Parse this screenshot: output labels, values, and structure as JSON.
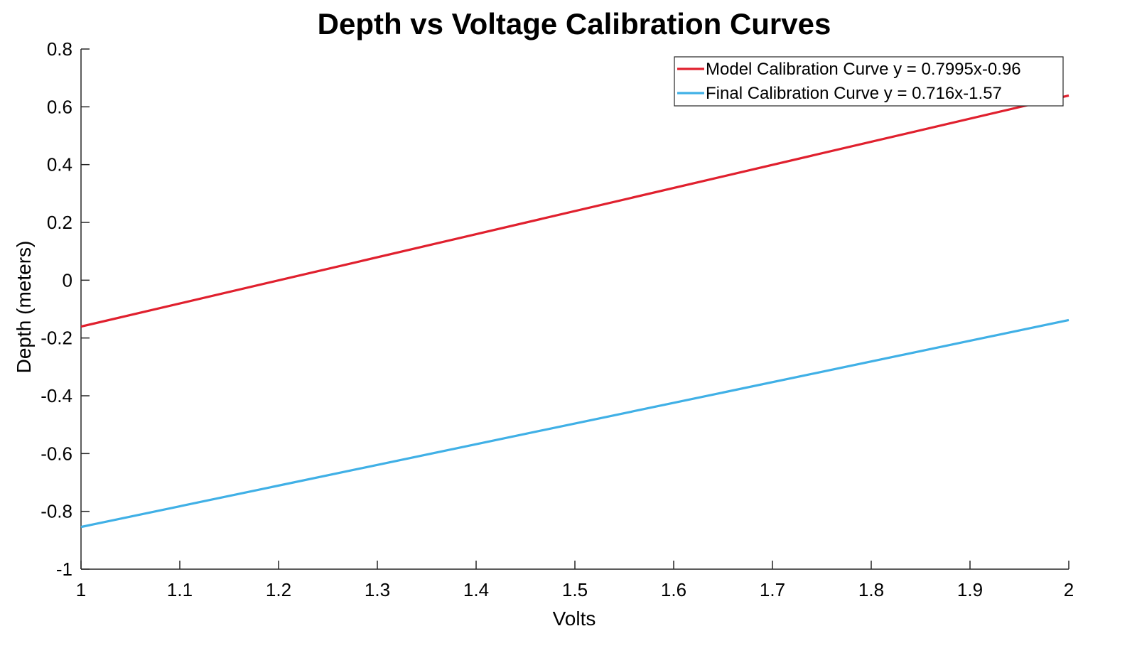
{
  "chart_data": {
    "type": "line",
    "title": "Depth vs Voltage Calibration Curves",
    "xlabel": "Volts",
    "ylabel": "Depth (meters)",
    "xlim": [
      1,
      2
    ],
    "ylim": [
      -1,
      0.8
    ],
    "xticks": [
      "1",
      "1.1",
      "1.2",
      "1.3",
      "1.4",
      "1.5",
      "1.6",
      "1.7",
      "1.8",
      "1.9",
      "2"
    ],
    "yticks": [
      "0.8",
      "0.6",
      "0.4",
      "0.2",
      "0",
      "-0.2",
      "-0.4",
      "-0.6",
      "-0.8",
      "-1"
    ],
    "grid": false,
    "legend_position": "top-right",
    "series": [
      {
        "name": "Model Calibration Curve y = 0.7995x-0.96",
        "color": "#e0202e",
        "x": [
          1,
          2
        ],
        "y": [
          -0.1605,
          0.639
        ]
      },
      {
        "name": "Final Calibration Curve y = 0.716x-1.57",
        "color": "#40b0e6",
        "x": [
          1,
          2
        ],
        "y": [
          -0.854,
          -0.138
        ]
      }
    ]
  }
}
